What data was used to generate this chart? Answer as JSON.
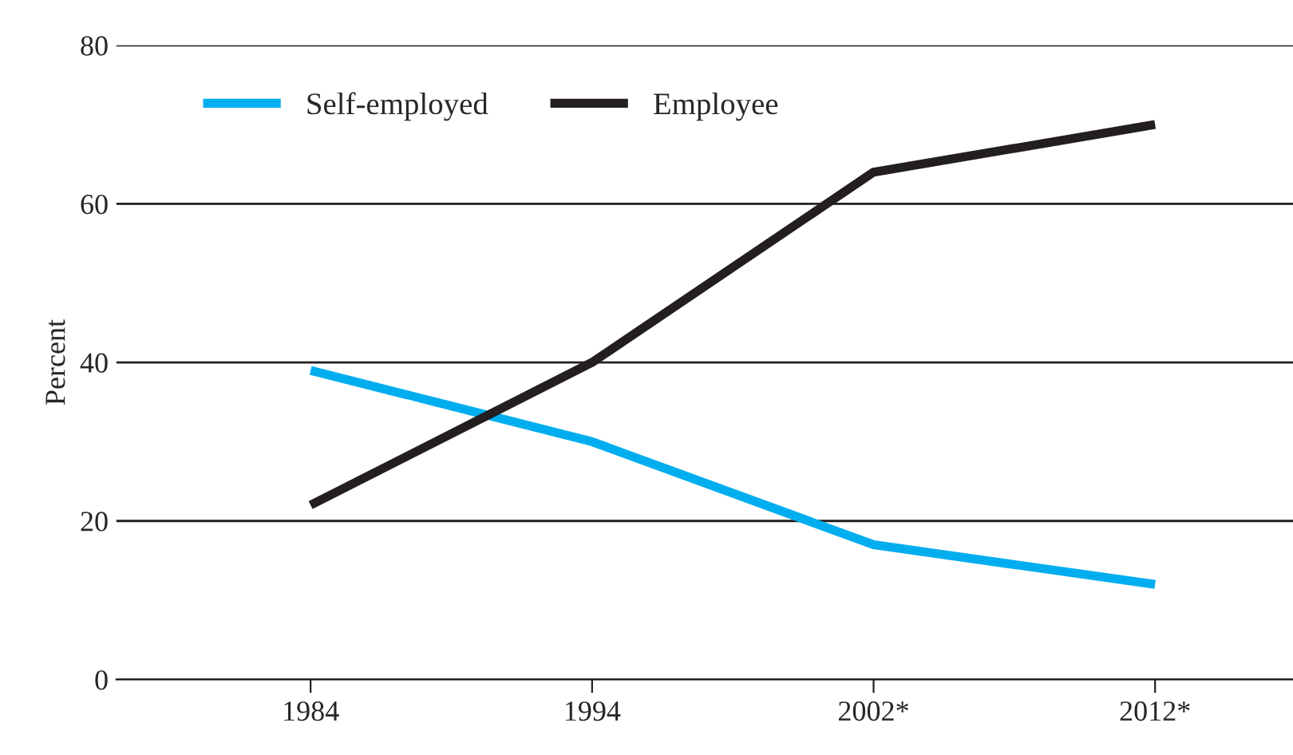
{
  "chart_data": {
    "type": "line",
    "ylabel": "Percent",
    "categories": [
      "1984",
      "1994",
      "2002*",
      "2012*"
    ],
    "series": [
      {
        "name": "Self-employed",
        "color": "#00aeef",
        "values": [
          39,
          30,
          17,
          12
        ]
      },
      {
        "name": "Employee",
        "color": "#231f20",
        "values": [
          22,
          40,
          64,
          70
        ]
      }
    ],
    "ylim": [
      0,
      80
    ],
    "yticks": [
      0,
      20,
      40,
      60,
      80
    ],
    "grid": "y",
    "legend": "top left",
    "marker": "none",
    "line_style": "solid"
  }
}
